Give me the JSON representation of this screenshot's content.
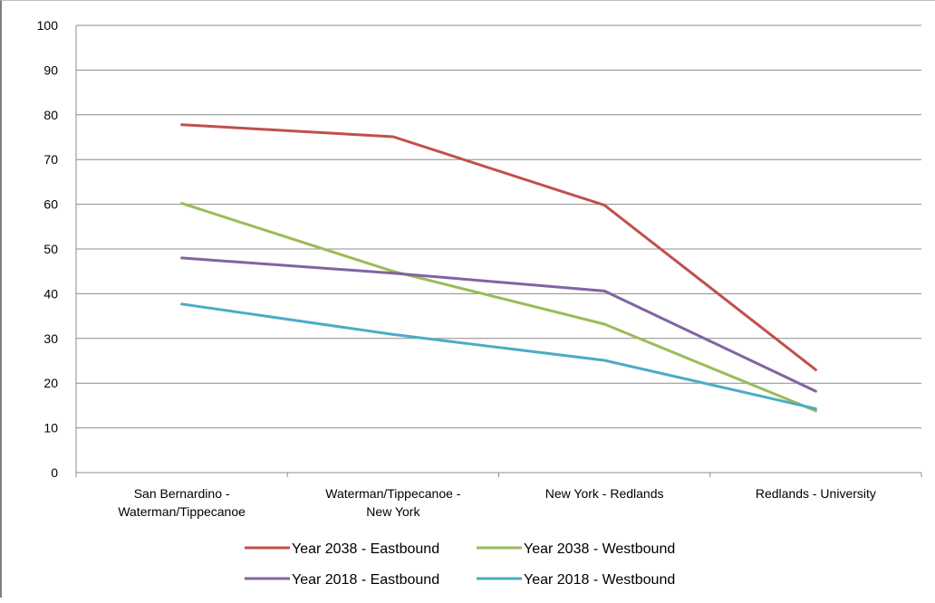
{
  "chart_data": {
    "type": "line",
    "categories": [
      [
        "San Bernardino -",
        "Waterman/Tippecanoe"
      ],
      [
        "Waterman/Tippecanoe -",
        "New York"
      ],
      [
        "New York - Redlands"
      ],
      [
        "Redlands - University"
      ]
    ],
    "ylim": [
      0,
      100
    ],
    "yticks": [
      0,
      10,
      20,
      30,
      40,
      50,
      60,
      70,
      80,
      90,
      100
    ],
    "grid": true,
    "legend_position": "bottom",
    "series": [
      {
        "name": "Year 2038 - Eastbound",
        "color": "#c0504d",
        "values": [
          77.8,
          75.1,
          59.8,
          23.0
        ]
      },
      {
        "name": "Year 2038 - Westbound",
        "color": "#9bbb59",
        "values": [
          60.2,
          45.0,
          33.2,
          13.8
        ]
      },
      {
        "name": "Year 2018 - Eastbound",
        "color": "#8064a2",
        "values": [
          48.0,
          44.6,
          40.6,
          18.2
        ]
      },
      {
        "name": "Year 2018 - Westbound",
        "color": "#4bacc6",
        "values": [
          37.7,
          30.9,
          25.1,
          14.3
        ]
      }
    ]
  }
}
